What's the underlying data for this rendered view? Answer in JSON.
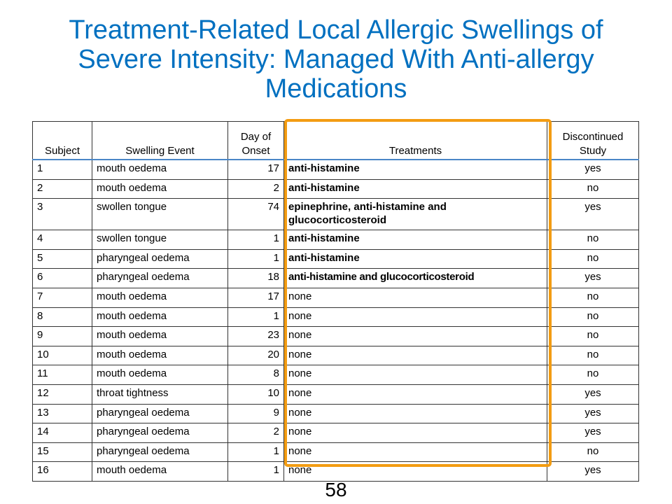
{
  "title": {
    "line1": "Treatment-Related Local Allergic Swellings of",
    "line2": "Severe Intensity: Managed With Anti-allergy",
    "line3": "Medications"
  },
  "table": {
    "headers": {
      "subject": "Subject",
      "swelling_event": "Swelling Event",
      "day_of_onset_line1": "Day of",
      "day_of_onset_line2": "Onset",
      "treatments": "Treatments",
      "discontinued_line1": "Discontinued",
      "discontinued_line2": "Study"
    },
    "rows": [
      {
        "subject": "1",
        "event": "mouth oedema",
        "onset": "17",
        "treatment": "anti-histamine",
        "discontinued": "yes"
      },
      {
        "subject": "2",
        "event": "mouth oedema",
        "onset": "2",
        "treatment": "anti-histamine",
        "discontinued": "no"
      },
      {
        "subject": "3",
        "event": "swollen tongue",
        "onset": "74",
        "treatment": "epinephrine, anti-histamine and glucocorticosteroid",
        "discontinued": "yes"
      },
      {
        "subject": "4",
        "event": "swollen tongue",
        "onset": "1",
        "treatment": "anti-histamine",
        "discontinued": "no"
      },
      {
        "subject": "5",
        "event": "pharyngeal oedema",
        "onset": "1",
        "treatment": "anti-histamine",
        "discontinued": "no"
      },
      {
        "subject": "6",
        "event": "pharyngeal oedema",
        "onset": "18",
        "treatment": "anti-histamine and glucocorticosteroid",
        "discontinued": "yes"
      },
      {
        "subject": "7",
        "event": "mouth oedema",
        "onset": "17",
        "treatment": "none",
        "discontinued": "no"
      },
      {
        "subject": "8",
        "event": "mouth oedema",
        "onset": "1",
        "treatment": "none",
        "discontinued": "no"
      },
      {
        "subject": "9",
        "event": "mouth oedema",
        "onset": "23",
        "treatment": "none",
        "discontinued": "no"
      },
      {
        "subject": "10",
        "event": "mouth oedema",
        "onset": "20",
        "treatment": "none",
        "discontinued": "no"
      },
      {
        "subject": "11",
        "event": "mouth oedema",
        "onset": "8",
        "treatment": "none",
        "discontinued": "no"
      },
      {
        "subject": "12",
        "event": "throat tightness",
        "onset": "10",
        "treatment": "none",
        "discontinued": "yes"
      },
      {
        "subject": "13",
        "event": "pharyngeal oedema",
        "onset": "9",
        "treatment": "none",
        "discontinued": "yes"
      },
      {
        "subject": "14",
        "event": "pharyngeal oedema",
        "onset": "2",
        "treatment": "none",
        "discontinued": "yes"
      },
      {
        "subject": "15",
        "event": "pharyngeal oedema",
        "onset": "1",
        "treatment": "none",
        "discontinued": "no"
      },
      {
        "subject": "16",
        "event": "mouth oedema",
        "onset": "1",
        "treatment": "none",
        "discontinued": "yes"
      }
    ]
  },
  "page_number": "58",
  "colors": {
    "title": "#0070c0",
    "highlight_border": "#f39c12",
    "header_rule": "#4a86c7"
  }
}
